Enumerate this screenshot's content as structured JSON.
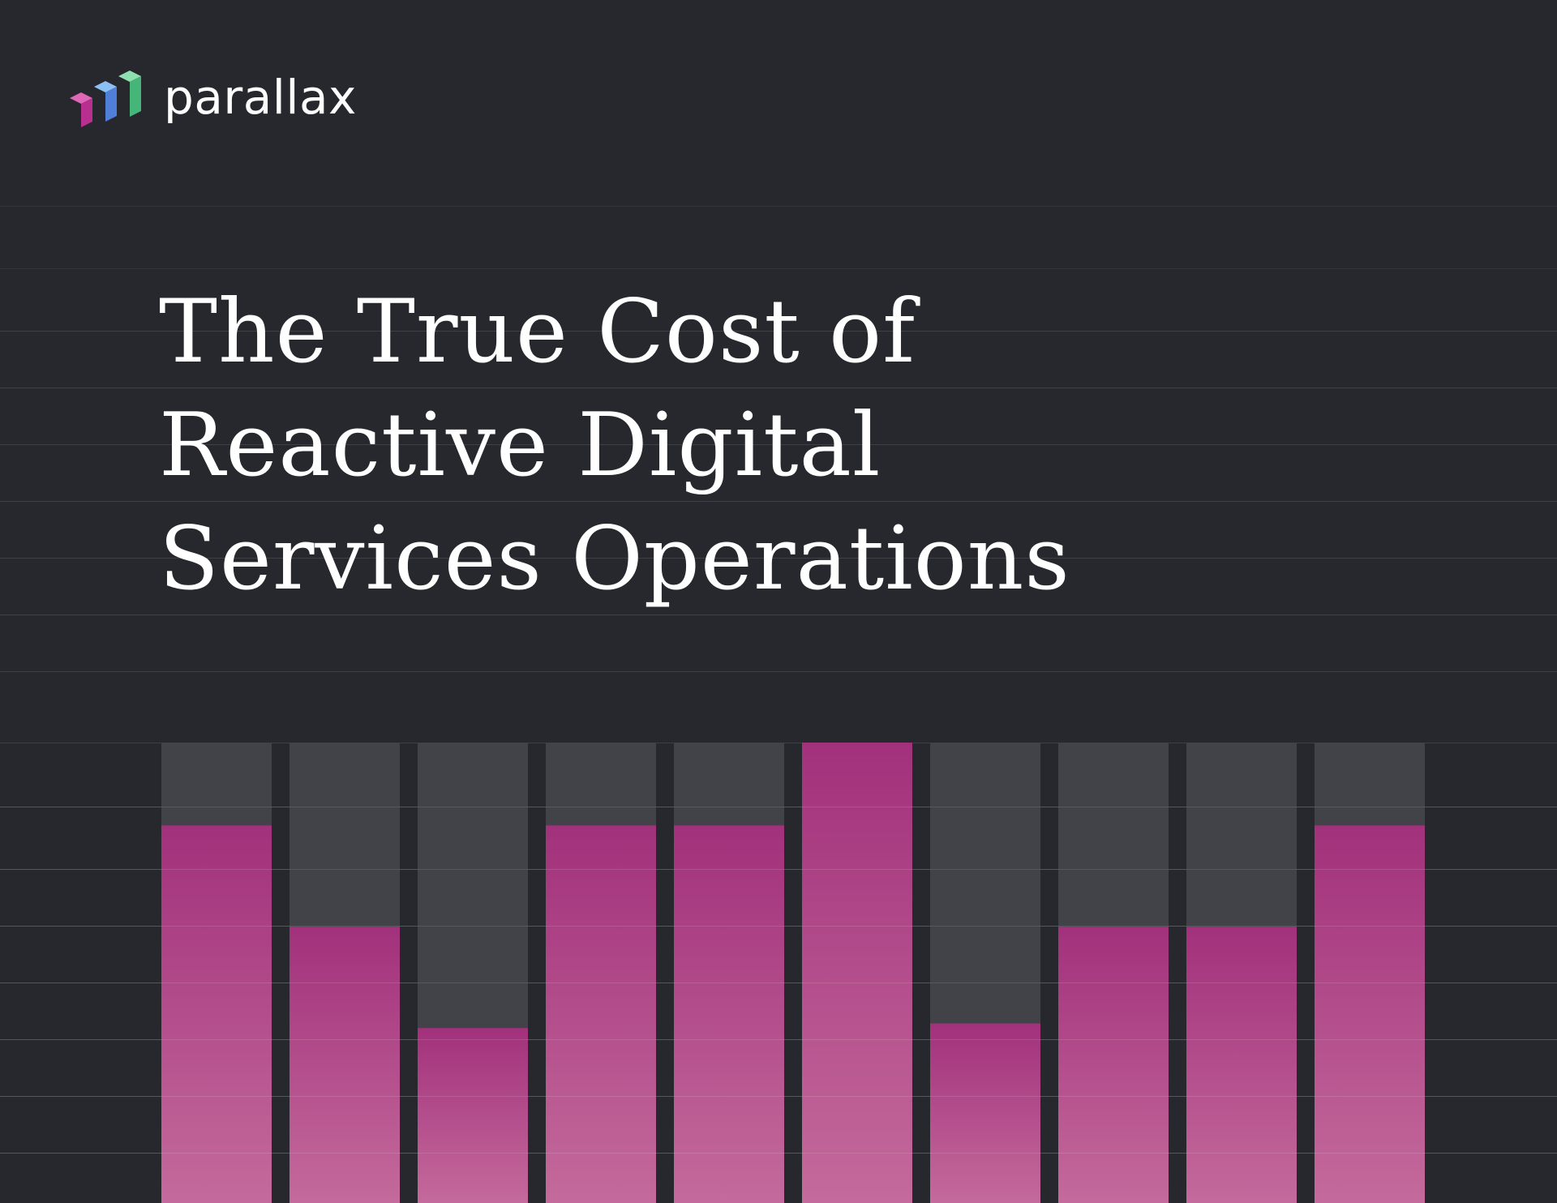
{
  "brand": {
    "name": "parallax",
    "logo_icon": "parallax-bars-logo-icon",
    "logo_colors": [
      "#d44aa8",
      "#5b9bea",
      "#5fc48a"
    ]
  },
  "title": {
    "lines": [
      "The True Cost of",
      "Reactive Digital",
      "Services Operations"
    ]
  },
  "colors": {
    "background": "#27282d",
    "bar_track": "#414349",
    "bar_fill_top": "#a2317b",
    "bar_fill_bottom": "#c46a9c",
    "rule": "#3f4046"
  },
  "chart_data": {
    "type": "bar",
    "values": [
      82,
      60,
      38,
      82,
      82,
      100,
      39,
      60,
      60,
      82
    ],
    "ylim": [
      0,
      100
    ]
  }
}
